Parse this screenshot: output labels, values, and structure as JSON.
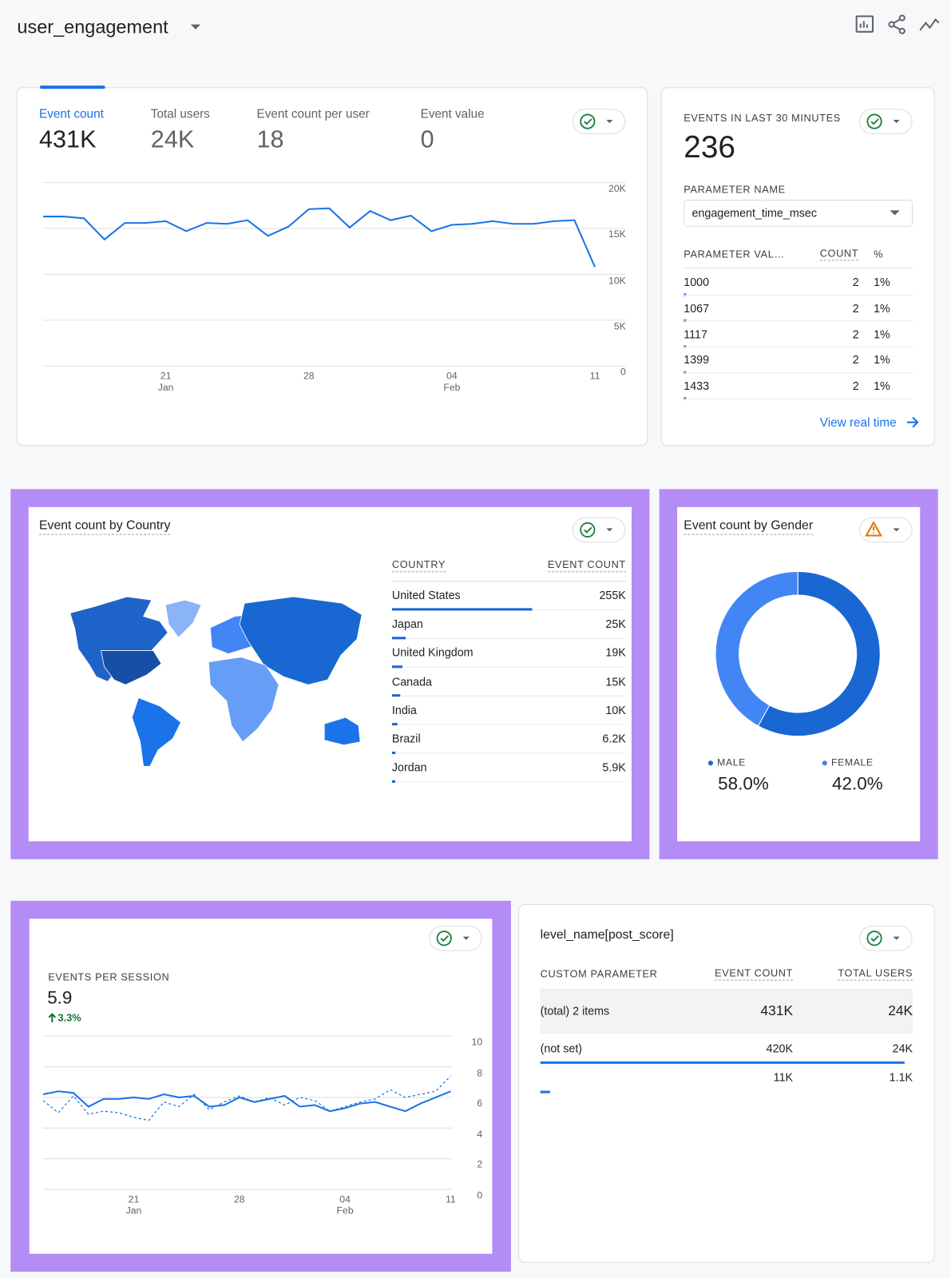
{
  "header": {
    "title": "user_engagement"
  },
  "overview": {
    "metrics": [
      {
        "label": "Event count",
        "value": "431K"
      },
      {
        "label": "Total users",
        "value": "24K"
      },
      {
        "label": "Event count per user",
        "value": "18"
      },
      {
        "label": "Event value",
        "value": "0"
      }
    ],
    "chart_data": {
      "type": "line",
      "categories": [
        null,
        null,
        null,
        null,
        null,
        null,
        "21\nJan",
        null,
        null,
        null,
        null,
        null,
        null,
        "28",
        null,
        null,
        null,
        null,
        null,
        null,
        "04\nFeb",
        null,
        null,
        null,
        null,
        null,
        null,
        "11"
      ],
      "values": [
        16300,
        16300,
        16100,
        13800,
        15600,
        15600,
        15800,
        14700,
        15600,
        15500,
        15900,
        14200,
        15200,
        17100,
        17200,
        15100,
        16900,
        15900,
        16400,
        14700,
        15400,
        15500,
        15800,
        15500,
        15500,
        15800,
        15900,
        10800
      ],
      "color": "#1a73e8",
      "ylim": [
        0,
        20000
      ],
      "yticks": [
        0,
        {
          "value": 5000,
          "label": "5K"
        },
        {
          "value": 10000,
          "label": "10K"
        },
        {
          "value": 15000,
          "label": "15K"
        },
        {
          "value": 20000,
          "label": "20K"
        }
      ],
      "grid": true
    }
  },
  "realtime": {
    "title": "EVENTS IN LAST 30 MINUTES",
    "value": "236",
    "parameter_label": "PARAMETER NAME",
    "parameter": "engagement_time_msec",
    "table": {
      "header": [
        "PARAMETER VAL…",
        "COUNT",
        "%"
      ],
      "rows": [
        [
          "1000",
          "2",
          "1%"
        ],
        [
          "1067",
          "2",
          "1%"
        ],
        [
          "1117",
          "2",
          "1%"
        ],
        [
          "1399",
          "2",
          "1%"
        ],
        [
          "1433",
          "2",
          "1%"
        ]
      ]
    },
    "link": "View real time"
  },
  "country": {
    "title": "Event count by Country",
    "chart_data": {
      "type": "bar",
      "headers": [
        "COUNTRY",
        "EVENT COUNT"
      ],
      "categories": [
        "United States",
        "Japan",
        "United Kingdom",
        "Canada",
        "India",
        "Brazil",
        "Jordan"
      ],
      "values": [
        255000,
        25000,
        19000,
        15000,
        10000,
        6200,
        5900
      ],
      "value_labels": [
        "255K",
        "25K",
        "19K",
        "15K",
        "10K",
        "6.2K",
        "5.9K"
      ],
      "color": "#1967d2"
    }
  },
  "gender": {
    "title": "Event count by Gender",
    "chart_data": {
      "type": "pie",
      "categories": [
        "MALE",
        "FEMALE"
      ],
      "values": [
        58,
        42
      ],
      "value_labels": [
        "58.0%",
        "42.0%"
      ],
      "colors": [
        "#1967d2",
        "#4285f4"
      ]
    }
  },
  "session": {
    "title": "EVENTS PER SESSION",
    "value": "5.9",
    "change": "3.3%",
    "chart_data": {
      "type": "line",
      "categories": [
        null,
        null,
        null,
        null,
        null,
        null,
        "21\nJan",
        null,
        null,
        null,
        null,
        null,
        null,
        "28",
        null,
        null,
        null,
        null,
        null,
        null,
        "04\nFeb",
        null,
        null,
        null,
        null,
        null,
        null,
        "11"
      ],
      "series": [
        {
          "color": "#1a73e8",
          "dashed": false,
          "values": [
            6.2,
            6.4,
            6.3,
            5.4,
            5.9,
            5.9,
            6.0,
            5.9,
            6.2,
            6.0,
            6.1,
            5.4,
            5.5,
            6.0,
            5.7,
            5.9,
            6.1,
            5.4,
            5.5,
            5.1,
            5.3,
            5.6,
            5.7,
            5.4,
            5.1,
            5.6,
            6.0,
            6.4
          ]
        },
        {
          "color": "#1a73e8",
          "dashed": true,
          "values": [
            5.8,
            5.0,
            6.1,
            4.9,
            5.1,
            5.0,
            4.7,
            4.5,
            5.7,
            5.4,
            6.2,
            5.2,
            5.7,
            6.1,
            5.7,
            6.0,
            5.5,
            6.0,
            5.8,
            5.1,
            5.4,
            5.7,
            5.9,
            6.5,
            6.0,
            6.2,
            6.4,
            7.4
          ]
        }
      ],
      "ylim": [
        0,
        10
      ],
      "yticks": [
        0,
        2,
        4,
        6,
        8,
        10
      ],
      "grid": true
    }
  },
  "params": {
    "title": "level_name[post_score]",
    "table": {
      "header": [
        "CUSTOM PARAMETER",
        "EVENT COUNT",
        "TOTAL USERS"
      ],
      "rows": [
        [
          "(total) 2 items",
          "431K",
          "24K"
        ],
        [
          "(not set)",
          "420K",
          "24K"
        ],
        [
          null,
          "11K",
          "1.1K"
        ]
      ]
    }
  }
}
